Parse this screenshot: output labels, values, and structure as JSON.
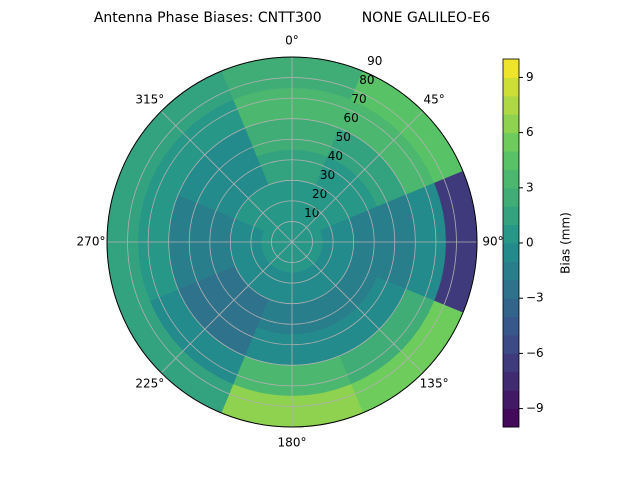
{
  "chart_data": {
    "type": "polar-contour",
    "title": "Antenna Phase Biases: CNTT300         NONE GALILEO-E6",
    "colorbar_label": "Bias (mm)",
    "colormap": "viridis",
    "levels": 20,
    "grid": true,
    "rlim": [
      0,
      90
    ],
    "rticks": [
      10,
      20,
      30,
      40,
      50,
      60,
      70,
      80,
      90
    ],
    "thetaticks": [
      {
        "value": 0,
        "label": "0°"
      },
      {
        "value": 45,
        "label": "45°"
      },
      {
        "value": 90,
        "label": "90°"
      },
      {
        "value": 135,
        "label": "135°"
      },
      {
        "value": 180,
        "label": "180°"
      },
      {
        "value": 225,
        "label": "225°"
      },
      {
        "value": 270,
        "label": "270°"
      },
      {
        "value": 315,
        "label": "315°"
      }
    ],
    "azimuths": [
      0,
      45,
      90,
      135,
      180,
      225,
      270,
      315
    ],
    "r_edges": [
      0,
      15,
      30,
      45,
      60,
      75,
      90
    ],
    "values": [
      [
        0,
        0,
        1,
        2,
        3,
        2
      ],
      [
        0,
        0,
        0,
        1,
        3,
        4
      ],
      [
        0,
        -1,
        -2,
        -2,
        -1,
        -7
      ],
      [
        0,
        -1,
        -2,
        -1,
        2,
        5
      ],
      [
        0,
        -1,
        -2,
        -1,
        3,
        6
      ],
      [
        0,
        -1,
        -3,
        -3,
        -1,
        1
      ],
      [
        0,
        -1,
        -2,
        -2,
        0,
        1
      ],
      [
        0,
        0,
        -1,
        -1,
        0,
        1
      ]
    ],
    "clim": [
      -10,
      10
    ],
    "cticks": [
      {
        "value": -9,
        "label": "−9"
      },
      {
        "value": -6,
        "label": "−6"
      },
      {
        "value": -3,
        "label": "−3"
      },
      0,
      3,
      6,
      9
    ]
  }
}
